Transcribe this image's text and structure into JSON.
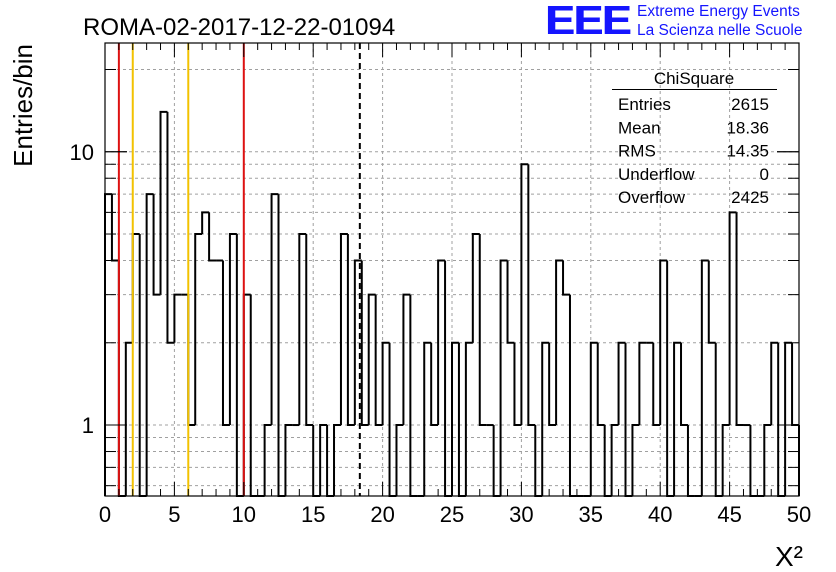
{
  "title": "ROMA-02-2017-12-22-01094",
  "logo": {
    "text": "EEE",
    "line1": "Extreme Energy Events",
    "line2": "La Scienza nelle Scuole"
  },
  "colors": {
    "red_lines": "#dd1111",
    "yellow_lines": "#f2c200",
    "logo_blue": "#1515ff",
    "grid": "#a0a0a0"
  },
  "stats": {
    "name": "ChiSquare",
    "rows": [
      {
        "label": "Entries",
        "value": "2615"
      },
      {
        "label": "Mean",
        "value": "18.36"
      },
      {
        "label": "RMS",
        "value": "14.35"
      },
      {
        "label": "Underflow",
        "value": "0"
      },
      {
        "label": "Overflow",
        "value": "2425"
      }
    ]
  },
  "chart_data": {
    "type": "histogram",
    "title": "ROMA-02-2017-12-22-01094",
    "xlabel": "X²",
    "ylabel": "Entries/bin",
    "xlim": [
      0,
      50
    ],
    "ylim": [
      0.55,
      25
    ],
    "yscale": "log",
    "x_ticks": [
      "0",
      "5",
      "10",
      "15",
      "20",
      "25",
      "30",
      "35",
      "40",
      "45",
      "50"
    ],
    "y_ticks": [
      "1",
      "10"
    ],
    "grid": true,
    "bin_width": 0.5,
    "counts": [
      7,
      4,
      0,
      2,
      5,
      0,
      7,
      3,
      14,
      2,
      3,
      3,
      1,
      5,
      6,
      4,
      4,
      1,
      5,
      0,
      3,
      0,
      0,
      1,
      7,
      0,
      1,
      1,
      5,
      1,
      0,
      1,
      0,
      1,
      5,
      1,
      4,
      1,
      3,
      1,
      2,
      0,
      1,
      3,
      0,
      0,
      2,
      1,
      4,
      0,
      2,
      0,
      2,
      5,
      1,
      1,
      0,
      4,
      2,
      1,
      9,
      1,
      0,
      2,
      1,
      4,
      3,
      0,
      0,
      0,
      2,
      1,
      0,
      1,
      2,
      0,
      1,
      2,
      2,
      1,
      4,
      0,
      2,
      1,
      0,
      0,
      4,
      2,
      0,
      1,
      6,
      1,
      1,
      0,
      0,
      1,
      2,
      0,
      2,
      1
    ],
    "vertical_lines": [
      {
        "x": 1,
        "color": "red",
        "style": "solid"
      },
      {
        "x": 2,
        "color": "yellow",
        "style": "solid"
      },
      {
        "x": 6,
        "color": "yellow",
        "style": "solid"
      },
      {
        "x": 10,
        "color": "red",
        "style": "solid"
      },
      {
        "x": 18.36,
        "color": "black",
        "style": "dashed"
      }
    ]
  }
}
